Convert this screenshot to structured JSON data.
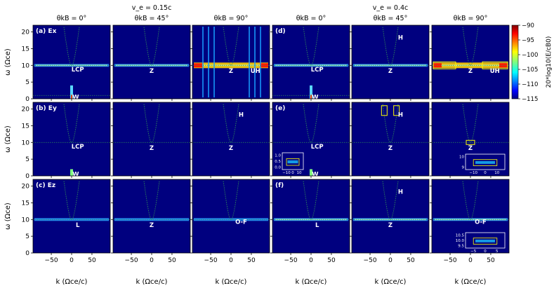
{
  "chart_data": {
    "type": "heatmap",
    "description_grid": "3 rows (Ex, Ey, Ez) x 6 columns of dispersion spectra",
    "group_titles": [
      "v_e = 0.15c",
      "v_e = 0.4c"
    ],
    "column_titles": [
      "θkB = 0°",
      "θkB = 45°",
      "θkB = 90°",
      "θkB = 0°",
      "θkB = 45°",
      "θkB = 90°"
    ],
    "xlabel": "k (Ωce/c)",
    "ylabel": "ω (Ωce)",
    "xlim": [
      -95,
      95
    ],
    "ylim": [
      0,
      22
    ],
    "xticks": [
      -50,
      0,
      50
    ],
    "xtick_labels": [
      "−50",
      "0",
      "50"
    ],
    "yticks": [
      0,
      5,
      10,
      15,
      20
    ],
    "colorbar": {
      "label": "20*log10(E/cB0)",
      "range": [
        -115,
        -90
      ],
      "ticks": [
        -90,
        -95,
        -100,
        -105,
        -110,
        -115
      ],
      "colormap": "jet"
    },
    "panel_labels": [
      [
        "(a) Ex",
        "",
        "",
        "(d)",
        "",
        ""
      ],
      [
        "(b) Ey",
        "",
        "",
        "(e)",
        "",
        ""
      ],
      [
        "(c) Ez",
        "",
        "",
        "(f)",
        "",
        ""
      ]
    ],
    "mode_labels": [
      [
        [
          "LCP",
          "W"
        ],
        [
          "Z"
        ],
        [
          "Z",
          "UH"
        ],
        [
          "LCP",
          "W"
        ],
        [
          "H",
          "Z"
        ],
        [
          "Z",
          "UH"
        ]
      ],
      [
        [
          "LCP",
          "W"
        ],
        [
          "Z"
        ],
        [
          "H",
          "Z"
        ],
        [
          "LCP",
          "W"
        ],
        [
          "H",
          "Z"
        ],
        [
          "Z"
        ]
      ],
      [
        [
          "L"
        ],
        [
          "Z"
        ],
        [
          "O-F"
        ],
        [
          "L"
        ],
        [
          "H",
          "Z"
        ],
        [
          "O-F"
        ]
      ]
    ],
    "reference_lines": {
      "plasma_frequency_level": 10,
      "electron_cyclotron_level": 1,
      "light_dispersion_min": 10
    }
  },
  "insets": {
    "e1": {
      "xticks": [
        "−10",
        "0",
        "10"
      ],
      "yticks": [
        "0.0",
        "0.5",
        "1.0"
      ]
    },
    "e6": {
      "xticks": [
        "−10",
        "0",
        "10"
      ],
      "yticks": [
        "9",
        "10"
      ]
    },
    "f6": {
      "xticks": [
        "−5",
        "0",
        "5"
      ],
      "yticks": [
        "9.5",
        "10.0",
        "10.5"
      ]
    }
  }
}
